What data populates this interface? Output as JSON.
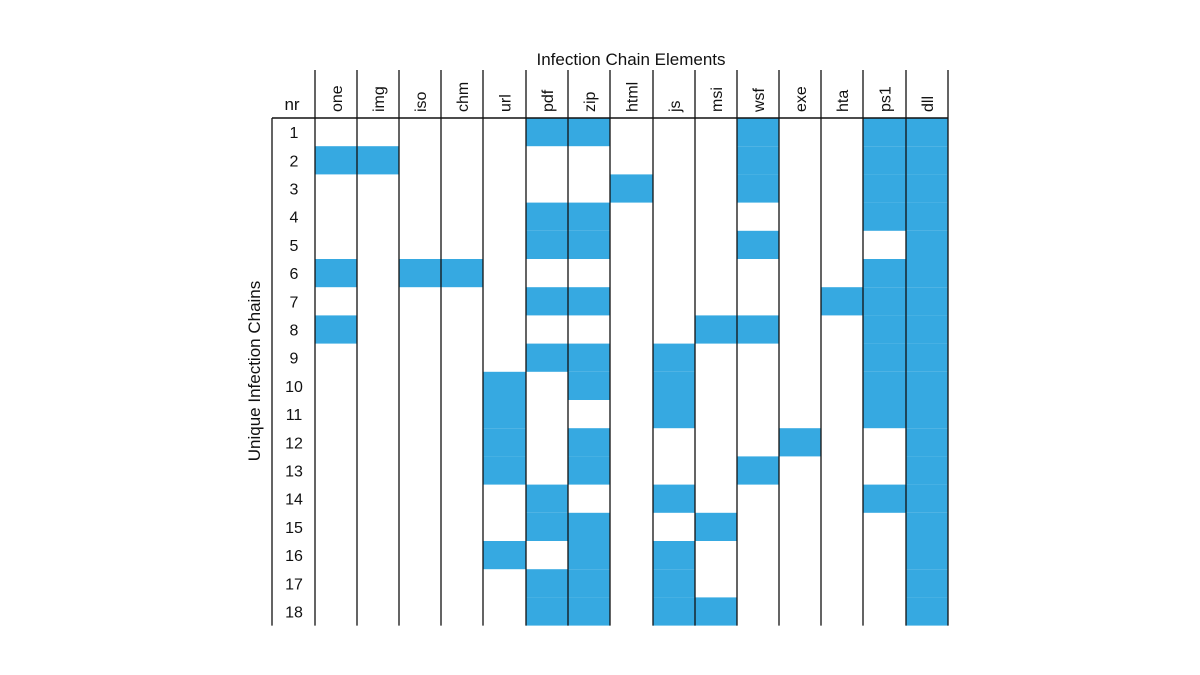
{
  "chart_data": {
    "type": "heatmap",
    "title": "Infection Chain Elements",
    "ylabel": "Unique Infection Chains",
    "row_header": "nr",
    "columns": [
      "one",
      "img",
      "iso",
      "chm",
      "url",
      "pdf",
      "zip",
      "html",
      "js",
      "msi",
      "wsf",
      "exe",
      "hta",
      "ps1",
      "dll"
    ],
    "rows": [
      "1",
      "2",
      "3",
      "4",
      "5",
      "6",
      "7",
      "8",
      "9",
      "10",
      "11",
      "12",
      "13",
      "14",
      "15",
      "16",
      "17",
      "18"
    ],
    "matrix": [
      [
        0,
        0,
        0,
        0,
        0,
        1,
        1,
        0,
        0,
        0,
        1,
        0,
        0,
        1,
        1
      ],
      [
        1,
        1,
        0,
        0,
        0,
        0,
        0,
        0,
        0,
        0,
        1,
        0,
        0,
        1,
        1
      ],
      [
        0,
        0,
        0,
        0,
        0,
        0,
        0,
        1,
        0,
        0,
        1,
        0,
        0,
        1,
        1
      ],
      [
        0,
        0,
        0,
        0,
        0,
        1,
        1,
        0,
        0,
        0,
        0,
        0,
        0,
        1,
        1
      ],
      [
        0,
        0,
        0,
        0,
        0,
        1,
        1,
        0,
        0,
        0,
        1,
        0,
        0,
        0,
        1
      ],
      [
        1,
        0,
        1,
        1,
        0,
        0,
        0,
        0,
        0,
        0,
        0,
        0,
        0,
        1,
        1
      ],
      [
        0,
        0,
        0,
        0,
        0,
        1,
        1,
        0,
        0,
        0,
        0,
        0,
        1,
        1,
        1
      ],
      [
        1,
        0,
        0,
        0,
        0,
        0,
        0,
        0,
        0,
        1,
        1,
        0,
        0,
        1,
        1
      ],
      [
        0,
        0,
        0,
        0,
        0,
        1,
        1,
        0,
        1,
        0,
        0,
        0,
        0,
        1,
        1
      ],
      [
        0,
        0,
        0,
        0,
        1,
        0,
        1,
        0,
        1,
        0,
        0,
        0,
        0,
        1,
        1
      ],
      [
        0,
        0,
        0,
        0,
        1,
        0,
        0,
        0,
        1,
        0,
        0,
        0,
        0,
        1,
        1
      ],
      [
        0,
        0,
        0,
        0,
        1,
        0,
        1,
        0,
        0,
        0,
        0,
        1,
        0,
        0,
        1
      ],
      [
        0,
        0,
        0,
        0,
        1,
        0,
        1,
        0,
        0,
        0,
        1,
        0,
        0,
        0,
        1
      ],
      [
        0,
        0,
        0,
        0,
        0,
        1,
        0,
        0,
        1,
        0,
        0,
        0,
        0,
        1,
        1
      ],
      [
        0,
        0,
        0,
        0,
        0,
        1,
        1,
        0,
        0,
        1,
        0,
        0,
        0,
        0,
        1
      ],
      [
        0,
        0,
        0,
        0,
        1,
        0,
        1,
        0,
        1,
        0,
        0,
        0,
        0,
        0,
        1
      ],
      [
        0,
        0,
        0,
        0,
        0,
        1,
        1,
        0,
        1,
        0,
        0,
        0,
        0,
        0,
        1
      ],
      [
        0,
        0,
        0,
        0,
        0,
        1,
        1,
        0,
        1,
        1,
        0,
        0,
        0,
        0,
        1
      ]
    ],
    "fill_color": "#36a9e1",
    "line_color": "#111111"
  }
}
